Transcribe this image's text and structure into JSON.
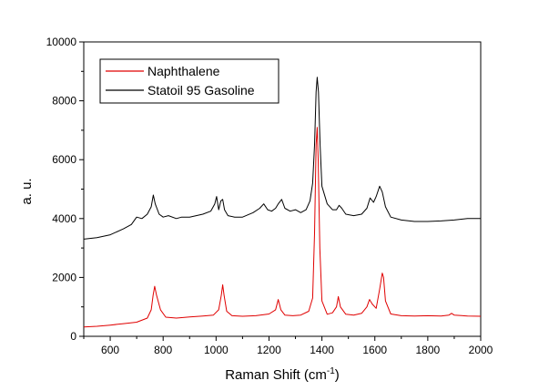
{
  "chart_data": {
    "type": "line",
    "xlabel": "Raman Shift (cm",
    "xlabel_sup": "-1",
    "xlabel_close": ")",
    "ylabel": "a. u.",
    "xlim": [
      500,
      2000
    ],
    "ylim": [
      0,
      10000
    ],
    "x_ticks": [
      600,
      800,
      1000,
      1200,
      1400,
      1600,
      1800,
      2000
    ],
    "y_ticks": [
      0,
      2000,
      4000,
      6000,
      8000,
      10000
    ],
    "grid": false,
    "legend_position": "top-left",
    "series": [
      {
        "name": "Naphthalene",
        "color": "#e00000",
        "x": [
          500,
          550,
          600,
          650,
          700,
          740,
          755,
          762,
          768,
          775,
          790,
          810,
          850,
          900,
          950,
          990,
          1010,
          1020,
          1025,
          1030,
          1040,
          1060,
          1100,
          1150,
          1200,
          1225,
          1235,
          1245,
          1260,
          1290,
          1320,
          1350,
          1365,
          1372,
          1378,
          1382,
          1386,
          1392,
          1400,
          1420,
          1440,
          1455,
          1462,
          1470,
          1490,
          1520,
          1550,
          1570,
          1580,
          1590,
          1605,
          1618,
          1628,
          1633,
          1640,
          1660,
          1700,
          1750,
          1800,
          1850,
          1880,
          1890,
          1900,
          1950,
          2000
        ],
        "y": [
          320,
          340,
          380,
          430,
          480,
          620,
          900,
          1400,
          1700,
          1400,
          900,
          650,
          620,
          660,
          690,
          720,
          900,
          1400,
          1750,
          1400,
          850,
          700,
          680,
          700,
          760,
          900,
          1250,
          900,
          720,
          700,
          720,
          850,
          1300,
          3500,
          6500,
          7100,
          6000,
          3000,
          1200,
          750,
          800,
          1000,
          1350,
          1000,
          750,
          720,
          780,
          1000,
          1250,
          1100,
          950,
          1600,
          2150,
          2000,
          1200,
          760,
          700,
          690,
          700,
          690,
          720,
          780,
          720,
          690,
          680
        ]
      },
      {
        "name": "Statoil 95 Gasoline",
        "color": "#000000",
        "x": [
          500,
          550,
          600,
          650,
          680,
          700,
          720,
          740,
          755,
          763,
          770,
          785,
          800,
          820,
          850,
          870,
          900,
          950,
          980,
          995,
          1002,
          1010,
          1018,
          1025,
          1032,
          1045,
          1070,
          1100,
          1140,
          1165,
          1180,
          1195,
          1210,
          1225,
          1235,
          1248,
          1260,
          1280,
          1300,
          1320,
          1340,
          1355,
          1365,
          1372,
          1378,
          1382,
          1387,
          1393,
          1400,
          1420,
          1440,
          1455,
          1465,
          1475,
          1490,
          1520,
          1550,
          1570,
          1582,
          1595,
          1605,
          1618,
          1628,
          1640,
          1660,
          1700,
          1750,
          1800,
          1850,
          1900,
          1950,
          2000
        ],
        "y": [
          3300,
          3350,
          3450,
          3650,
          3800,
          4050,
          4000,
          4150,
          4400,
          4800,
          4500,
          4150,
          4050,
          4100,
          4000,
          4050,
          4050,
          4150,
          4250,
          4500,
          4750,
          4300,
          4600,
          4650,
          4300,
          4100,
          4050,
          4050,
          4200,
          4350,
          4500,
          4300,
          4250,
          4350,
          4500,
          4650,
          4350,
          4250,
          4300,
          4200,
          4300,
          4600,
          5200,
          6500,
          8300,
          8800,
          8300,
          6500,
          5100,
          4500,
          4300,
          4300,
          4450,
          4350,
          4150,
          4100,
          4150,
          4350,
          4700,
          4550,
          4750,
          5100,
          4900,
          4400,
          4050,
          3950,
          3900,
          3900,
          3920,
          3950,
          4000,
          4000
        ]
      }
    ]
  }
}
